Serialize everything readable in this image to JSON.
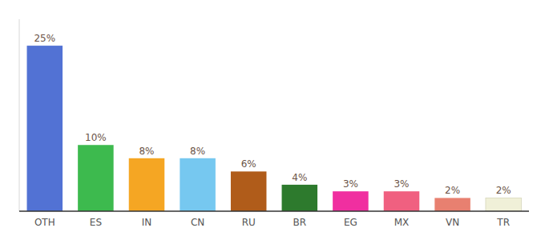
{
  "chart_data": {
    "type": "bar",
    "categories": [
      "OTH",
      "ES",
      "IN",
      "CN",
      "RU",
      "BR",
      "EG",
      "MX",
      "VN",
      "TR"
    ],
    "values": [
      25,
      10,
      8,
      8,
      6,
      4,
      3,
      3,
      2,
      2
    ],
    "value_labels": [
      "25%",
      "10%",
      "8%",
      "8%",
      "6%",
      "4%",
      "3%",
      "3%",
      "2%",
      "2%"
    ],
    "colors": [
      "#5272d4",
      "#3dba4e",
      "#f5a623",
      "#76c8f0",
      "#b05c1a",
      "#2d7a2d",
      "#f02fa0",
      "#f06080",
      "#e88070",
      "#f0f0d8"
    ],
    "ylim": [
      0,
      29
    ],
    "data_labels": true,
    "tick_labels": "x"
  }
}
